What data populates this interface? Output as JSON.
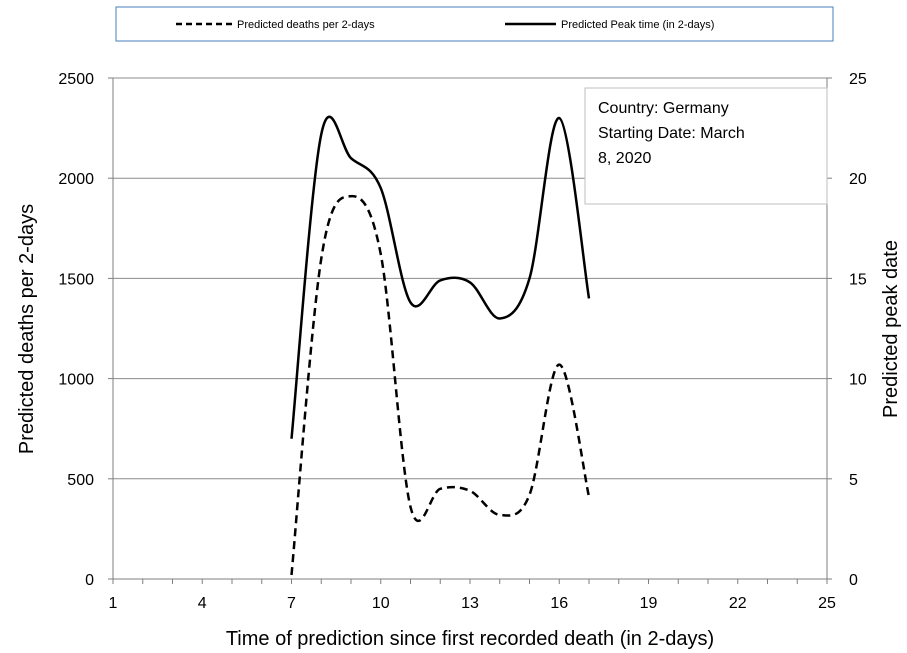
{
  "chart_data": {
    "type": "line",
    "legend": {
      "placement": "top",
      "entries": [
        {
          "label": "Predicted deaths per 2-days",
          "style": "dashed"
        },
        {
          "label": "Predicted Peak time (in 2-days)",
          "style": "solid"
        }
      ]
    },
    "annotation": {
      "lines": [
        "Country: Germany",
        "Starting Date: March",
        "8, 2020"
      ]
    },
    "xlabel": "Time of prediction since first recorded death (in 2-days)",
    "ylabel": "Predicted deaths per 2-days",
    "y2label": "Predicted peak date",
    "xlim": [
      1,
      25
    ],
    "ylim": [
      0,
      2500
    ],
    "y2lim": [
      0,
      25
    ],
    "xticks": [
      1,
      4,
      7,
      10,
      13,
      16,
      19,
      22,
      25
    ],
    "yticks": [
      0,
      500,
      1000,
      1500,
      2000,
      2500
    ],
    "y2ticks": [
      0,
      5,
      10,
      15,
      20,
      25
    ],
    "grid": "horizontal",
    "series": [
      {
        "name": "Predicted deaths per 2-days",
        "axis": "left",
        "style": "dashed",
        "x": [
          7,
          8,
          9,
          10,
          11,
          12,
          13,
          14,
          15,
          16,
          17
        ],
        "y": [
          20,
          1600,
          1910,
          1620,
          360,
          450,
          440,
          320,
          420,
          1070,
          410
        ]
      },
      {
        "name": "Predicted Peak time (in 2-days)",
        "axis": "right",
        "style": "solid",
        "x": [
          7,
          8,
          9,
          10,
          11,
          12,
          13,
          14,
          15,
          16,
          17
        ],
        "y": [
          7,
          22.2,
          21.0,
          19.5,
          13.8,
          14.9,
          14.8,
          13.0,
          15.0,
          23.0,
          14.0
        ]
      }
    ]
  }
}
